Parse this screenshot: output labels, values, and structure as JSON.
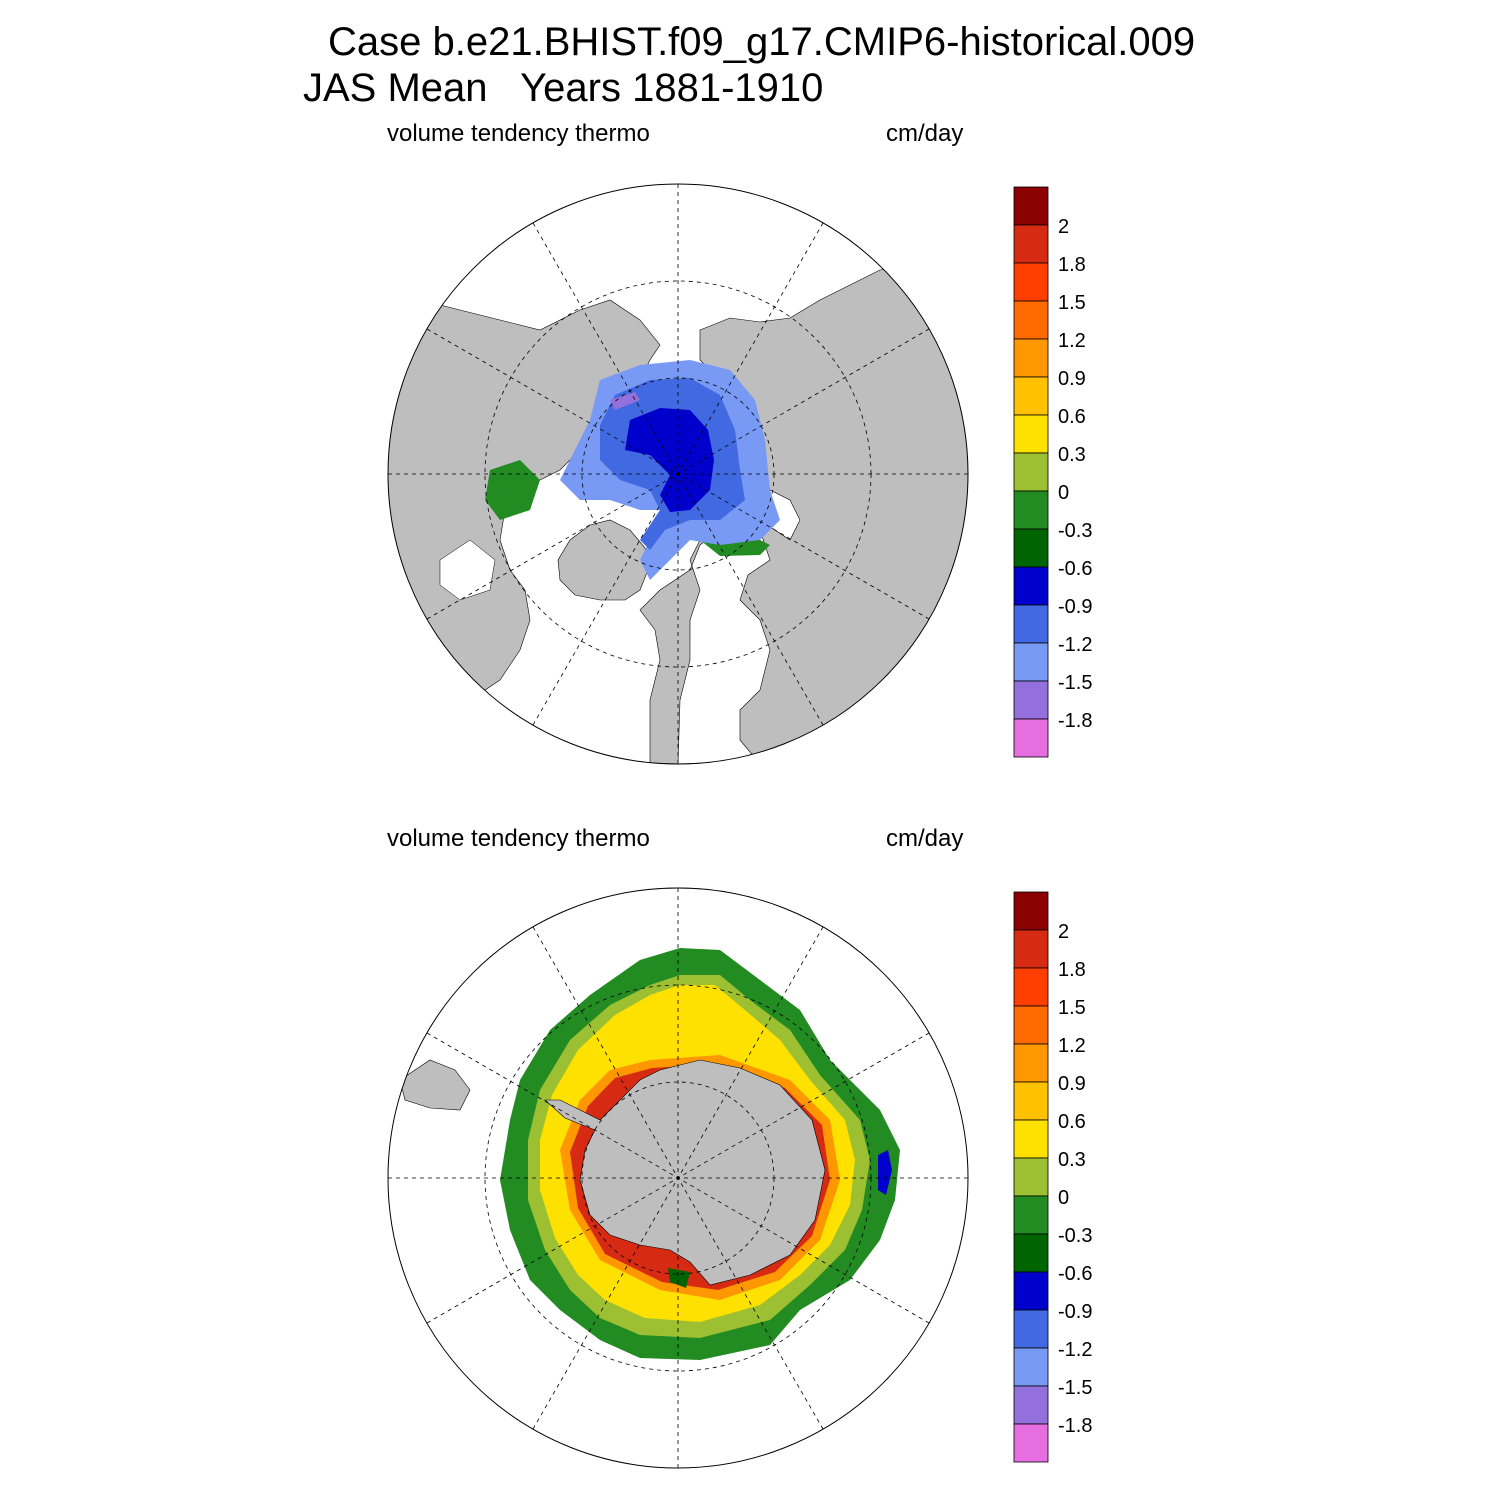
{
  "title": {
    "line1": "Case b.e21.BHIST.f09_g17.CMIP6-historical.009",
    "line2": "JAS Mean   Years 1881-1910"
  },
  "panels": [
    {
      "name": "arctic",
      "variable_label": "volume tendency thermo",
      "units_label": "cm/day"
    },
    {
      "name": "antarctic",
      "variable_label": "volume tendency thermo",
      "units_label": "cm/day"
    }
  ],
  "colorbar": {
    "tick_labels": [
      "2",
      "1.8",
      "1.5",
      "1.2",
      "0.9",
      "0.6",
      "0.3",
      "0",
      "-0.3",
      "-0.6",
      "-0.9",
      "-1.2",
      "-1.5",
      "-1.8"
    ],
    "colors_top_to_bottom": [
      "#8b0000",
      "#d62b12",
      "#ff3f00",
      "#ff6a00",
      "#ff9700",
      "#ffc100",
      "#ffe100",
      "#9cc031",
      "#228b22",
      "#006400",
      "#0000cd",
      "#4169e1",
      "#789af5",
      "#9370db",
      "#e76ee0"
    ]
  },
  "map_colors": {
    "land": "#bebebe",
    "no_data": "#ffffff"
  }
}
